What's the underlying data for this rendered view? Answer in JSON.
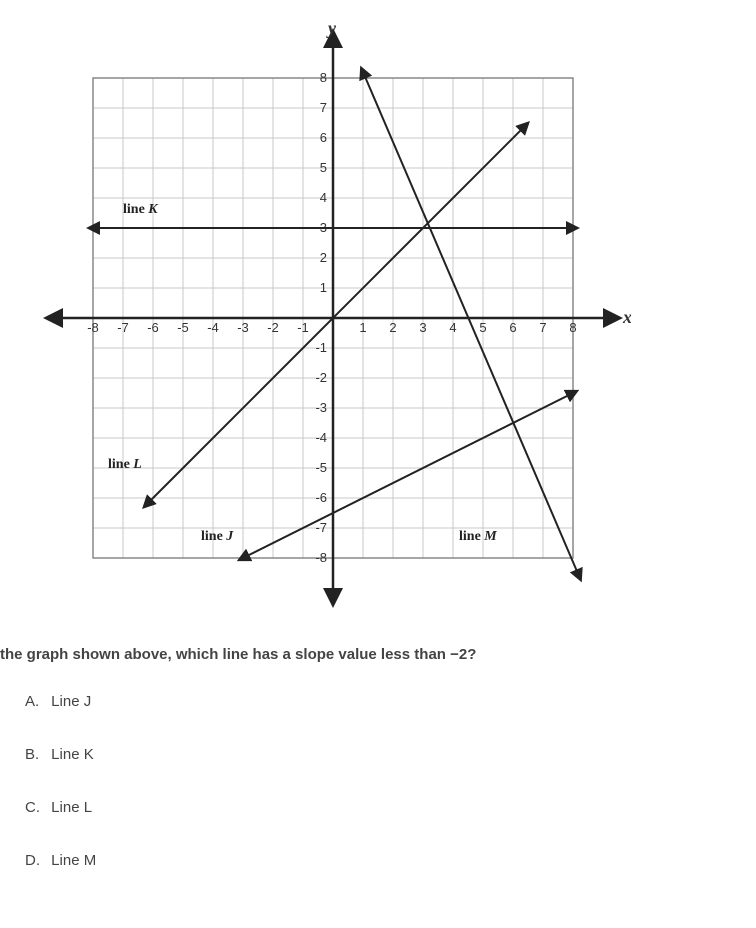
{
  "chart": {
    "type": "line-plot",
    "background_color": "#ffffff",
    "grid_color": "#c9c9c9",
    "axis_color": "#222222",
    "line_color": "#222222",
    "x_axis_label": "x",
    "y_axis_label": "y",
    "x_range": [
      -8,
      8
    ],
    "y_range": [
      -8,
      8
    ],
    "grid_step": 1,
    "x_tick_labels": [
      "-8",
      "-7",
      "-6",
      "-5",
      "-4",
      "-3",
      "-2",
      "-1",
      "1",
      "2",
      "3",
      "4",
      "5",
      "6",
      "7",
      "8"
    ],
    "y_tick_labels_pos": [
      "1",
      "2",
      "3",
      "4",
      "5",
      "6",
      "7",
      "8"
    ],
    "y_tick_labels_neg": [
      "-1",
      "-2",
      "-3",
      "-4",
      "-5",
      "-6",
      "-7",
      "-8"
    ],
    "lines": {
      "K": {
        "label": "line K",
        "points": [
          [
            -8,
            3
          ],
          [
            8,
            3
          ]
        ],
        "slope": 0,
        "arrow_both": true,
        "label_pos": [
          -7,
          3.5
        ]
      },
      "L": {
        "label": "line L",
        "points": [
          [
            -6.2,
            -6.2
          ],
          [
            6.4,
            6.4
          ]
        ],
        "slope": 1,
        "arrow_both": true,
        "label_pos": [
          -7.5,
          -5
        ]
      },
      "J": {
        "label": "line J",
        "points": [
          [
            -3,
            -8
          ],
          [
            8,
            -2.5
          ]
        ],
        "slope": 0.5,
        "arrow_both": true,
        "label_pos": [
          -4.4,
          -7.4
        ]
      },
      "M": {
        "label": "line M",
        "points": [
          [
            1,
            8.2
          ],
          [
            8.2,
            -8.6
          ]
        ],
        "slope": -2.33,
        "arrow_both": true,
        "label_pos": [
          4.2,
          -7.4
        ]
      }
    },
    "label_font": "Times New Roman",
    "label_fontsize": 14,
    "tick_fontsize": 13
  },
  "question": {
    "text": "the graph shown above, which line has a slope value less than −2?",
    "choices": [
      {
        "letter": "A.",
        "text": "Line J"
      },
      {
        "letter": "B.",
        "text": "Line K"
      },
      {
        "letter": "C.",
        "text": "Line L"
      },
      {
        "letter": "D.",
        "text": "Line M"
      }
    ]
  }
}
